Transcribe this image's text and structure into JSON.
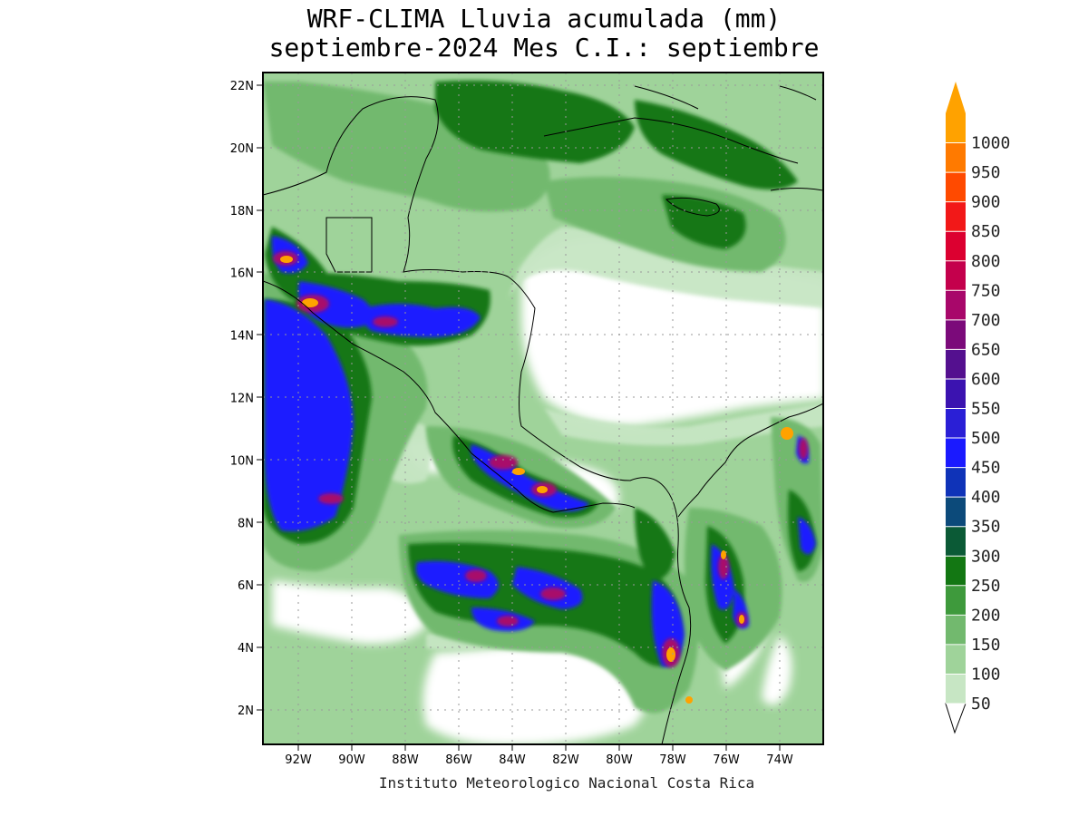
{
  "title_line1": "WRF-CLIMA Lluvia acumulada (mm)",
  "title_line2": "septiembre-2024 Mes C.I.: septiembre",
  "credit": "Instituto Meteorologico Nacional Costa Rica",
  "lon_ticks": [
    "92W",
    "90W",
    "88W",
    "86W",
    "84W",
    "82W",
    "80W",
    "78W",
    "76W",
    "74W"
  ],
  "lat_ticks": [
    "22N",
    "20N",
    "18N",
    "16N",
    "14N",
    "12N",
    "10N",
    "8N",
    "6N",
    "4N",
    "2N"
  ],
  "colorbar": {
    "levels": [
      "50",
      "100",
      "150",
      "200",
      "250",
      "300",
      "350",
      "400",
      "450",
      "500",
      "550",
      "600",
      "650",
      "700",
      "750",
      "800",
      "850",
      "900",
      "950",
      "1000"
    ],
    "colors": [
      "#c7e6c4",
      "#9fd39a",
      "#72b96e",
      "#3e9a3c",
      "#137713",
      "#0b5a36",
      "#0c4a7a",
      "#0f33b8",
      "#1a1aff",
      "#2a1fd6",
      "#3b13b0",
      "#54108f",
      "#7b0a7a",
      "#a8076a",
      "#c4004c",
      "#dc0030",
      "#f21818",
      "#ff4a00",
      "#ff7a00",
      "#ffa200"
    ]
  },
  "map": {
    "region": "Central America and northwestern South America",
    "lon_range": [
      "93.3W",
      "72.4W"
    ],
    "lat_range": [
      "0.9N",
      "22.4N"
    ],
    "variable": "accumulated rainfall (mm)"
  }
}
